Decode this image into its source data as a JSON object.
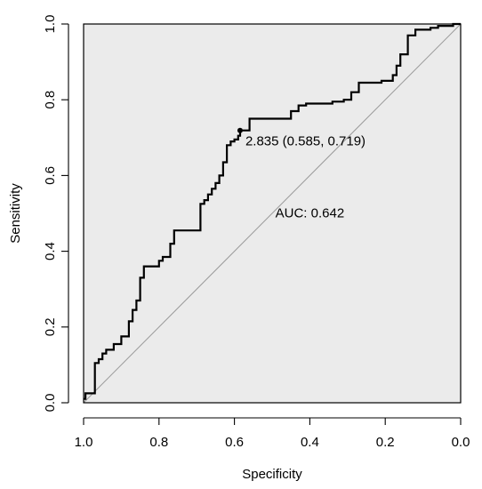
{
  "chart_data": {
    "type": "line",
    "title": "",
    "xlabel": "Specificity",
    "ylabel": "Sensitivity",
    "xlim": [
      1.0,
      0.0
    ],
    "ylim": [
      0.0,
      1.0
    ],
    "x_reversed": true,
    "grid": false,
    "legend": "none",
    "colors": {
      "plot_background": "#ebebeb",
      "curve": "#000000",
      "diagonal": "#9a9a9a",
      "frame": "#000000"
    },
    "x_ticks": [
      1.0,
      0.8,
      0.6,
      0.4,
      0.2,
      0.0
    ],
    "x_tick_labels": [
      "1.0",
      "0.8",
      "0.6",
      "0.4",
      "0.2",
      "0.0"
    ],
    "y_ticks": [
      0.0,
      0.2,
      0.4,
      0.6,
      0.8,
      1.0
    ],
    "y_tick_labels": [
      "0.0",
      "0.2",
      "0.4",
      "0.6",
      "0.8",
      "1.0"
    ],
    "series": [
      {
        "type": "step",
        "specificity": [
          1.0,
          0.995,
          0.995,
          0.97,
          0.97,
          0.96,
          0.96,
          0.95,
          0.95,
          0.94,
          0.94,
          0.92,
          0.92,
          0.9,
          0.9,
          0.88,
          0.88,
          0.87,
          0.87,
          0.86,
          0.86,
          0.85,
          0.85,
          0.84,
          0.84,
          0.8,
          0.8,
          0.79,
          0.79,
          0.77,
          0.77,
          0.76,
          0.76,
          0.69,
          0.69,
          0.68,
          0.68,
          0.67,
          0.67,
          0.66,
          0.66,
          0.65,
          0.65,
          0.64,
          0.64,
          0.63,
          0.63,
          0.62,
          0.62,
          0.61,
          0.61,
          0.6,
          0.6,
          0.59,
          0.59,
          0.585,
          0.585,
          0.56,
          0.56,
          0.45,
          0.45,
          0.43,
          0.43,
          0.41,
          0.41,
          0.34,
          0.34,
          0.31,
          0.31,
          0.29,
          0.29,
          0.27,
          0.27,
          0.21,
          0.21,
          0.18,
          0.18,
          0.17,
          0.17,
          0.16,
          0.16,
          0.14,
          0.14,
          0.12,
          0.12,
          0.08,
          0.08,
          0.06,
          0.06,
          0.02,
          0.02,
          0.0
        ],
        "sensitivity": [
          0.01,
          0.01,
          0.025,
          0.025,
          0.105,
          0.105,
          0.115,
          0.115,
          0.13,
          0.13,
          0.14,
          0.14,
          0.155,
          0.155,
          0.175,
          0.175,
          0.215,
          0.215,
          0.245,
          0.245,
          0.27,
          0.27,
          0.33,
          0.33,
          0.36,
          0.36,
          0.375,
          0.375,
          0.385,
          0.385,
          0.42,
          0.42,
          0.455,
          0.455,
          0.525,
          0.525,
          0.535,
          0.535,
          0.55,
          0.55,
          0.565,
          0.565,
          0.58,
          0.58,
          0.6,
          0.6,
          0.635,
          0.635,
          0.68,
          0.68,
          0.69,
          0.69,
          0.695,
          0.695,
          0.705,
          0.705,
          0.719,
          0.719,
          0.75,
          0.75,
          0.77,
          0.77,
          0.785,
          0.785,
          0.79,
          0.79,
          0.795,
          0.795,
          0.8,
          0.8,
          0.82,
          0.82,
          0.845,
          0.845,
          0.85,
          0.85,
          0.865,
          0.865,
          0.89,
          0.89,
          0.92,
          0.92,
          0.97,
          0.97,
          0.985,
          0.985,
          0.99,
          0.99,
          0.995,
          0.995,
          1.0,
          1.0
        ]
      }
    ],
    "reference_line": {
      "from": [
        1.0,
        0.0
      ],
      "to": [
        0.0,
        1.0
      ]
    },
    "threshold_point": {
      "specificity": 0.585,
      "sensitivity": 0.719
    },
    "annotations": {
      "threshold": "2.835 (0.585, 0.719)",
      "auc": "AUC: 0.642"
    },
    "auc_position": {
      "specificity": 0.4,
      "sensitivity": 0.49
    }
  }
}
